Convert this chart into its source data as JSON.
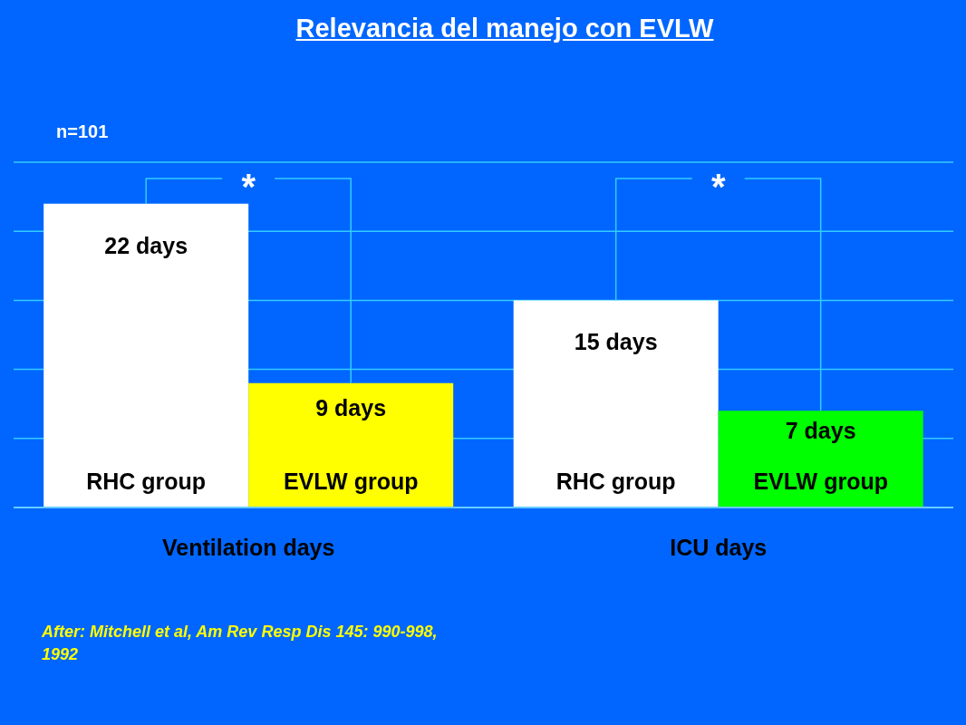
{
  "chart_data": {
    "type": "bar",
    "title": "Relevancia del manejo con EVLW",
    "categories": [
      "Ventilation days",
      "ICU days"
    ],
    "series": [
      {
        "name": "RHC group",
        "color": "#ffffff",
        "values": [
          22,
          15
        ],
        "value_labels": [
          "22 days",
          "15 days"
        ]
      },
      {
        "name": "EVLW group",
        "colors": [
          "#ffff00",
          "#00ff00"
        ],
        "values": [
          9,
          7
        ],
        "value_labels": [
          "9 days",
          "7 days"
        ]
      }
    ],
    "ylim": [
      0,
      25
    ],
    "yticks": [
      {
        "value": 0,
        "label": null
      },
      {
        "value": 5,
        "label": null
      },
      {
        "value": 10,
        "label": null
      },
      {
        "value": 15,
        "label": null
      },
      {
        "value": 20,
        "label": null
      },
      {
        "value": 25,
        "label": null
      }
    ],
    "grid": "y",
    "tick_labels": "x",
    "annotations": [
      "n=101",
      "*",
      "*",
      "After: Mitchell et al, Am Rev Resp Dis 145: 990-998, 1992"
    ]
  }
}
